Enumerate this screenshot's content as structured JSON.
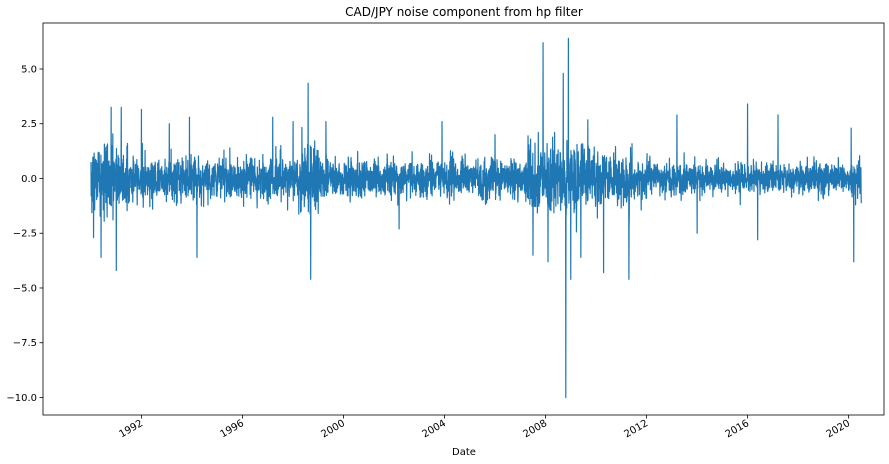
{
  "chart_data": {
    "type": "line",
    "title": "CAD/JPY noise component from hp filter",
    "xlabel": "Date",
    "ylabel": "",
    "x_range": [
      "1990-01",
      "2020-06"
    ],
    "xlim": [
      1988.1,
      2021.4
    ],
    "ylim": [
      -10.8,
      7.1
    ],
    "x_ticks": [
      {
        "value": 1992,
        "label": "1992"
      },
      {
        "value": 1996,
        "label": "1996"
      },
      {
        "value": 2000,
        "label": "2000"
      },
      {
        "value": 2004,
        "label": "2004"
      },
      {
        "value": 2008,
        "label": "2008"
      },
      {
        "value": 2012,
        "label": "2012"
      },
      {
        "value": 2016,
        "label": "2016"
      },
      {
        "value": 2020,
        "label": "2020"
      }
    ],
    "y_ticks": [
      {
        "value": 5.0,
        "label": "5.0"
      },
      {
        "value": 2.5,
        "label": "2.5"
      },
      {
        "value": 0.0,
        "label": "0.0"
      },
      {
        "value": -2.5,
        "label": "−2.5"
      },
      {
        "value": -5.0,
        "label": "−5.0"
      },
      {
        "value": -7.5,
        "label": "−7.5"
      },
      {
        "value": -10.0,
        "label": "−10.0"
      }
    ],
    "grid": false,
    "legend": "none",
    "series_color": "#1f77b4",
    "volatility_bands": [
      {
        "start": 1990.0,
        "end": 1991.5,
        "sigma": 1.3
      },
      {
        "start": 1991.5,
        "end": 1998.3,
        "sigma": 0.8
      },
      {
        "start": 1998.3,
        "end": 1999.0,
        "sigma": 1.3
      },
      {
        "start": 1999.0,
        "end": 2007.3,
        "sigma": 0.7
      },
      {
        "start": 2007.3,
        "end": 2010.0,
        "sigma": 1.3
      },
      {
        "start": 2010.0,
        "end": 2011.5,
        "sigma": 0.95
      },
      {
        "start": 2011.5,
        "end": 2020.5,
        "sigma": 0.6
      }
    ],
    "extremes": [
      {
        "x": 1990.1,
        "y": -2.7
      },
      {
        "x": 1990.4,
        "y": -3.6
      },
      {
        "x": 1990.8,
        "y": 3.25
      },
      {
        "x": 1991.0,
        "y": -4.2
      },
      {
        "x": 1991.2,
        "y": 3.25
      },
      {
        "x": 1992.0,
        "y": 3.15
      },
      {
        "x": 1993.1,
        "y": 2.5
      },
      {
        "x": 1993.9,
        "y": 2.8
      },
      {
        "x": 1994.2,
        "y": -3.6
      },
      {
        "x": 1997.2,
        "y": 2.8
      },
      {
        "x": 1998.0,
        "y": 2.6
      },
      {
        "x": 1998.6,
        "y": 4.35
      },
      {
        "x": 1998.7,
        "y": -4.6
      },
      {
        "x": 1999.3,
        "y": 2.6
      },
      {
        "x": 2002.2,
        "y": -2.3
      },
      {
        "x": 2003.9,
        "y": 2.6
      },
      {
        "x": 2006.0,
        "y": 2.0
      },
      {
        "x": 2007.5,
        "y": -3.5
      },
      {
        "x": 2007.9,
        "y": 6.2
      },
      {
        "x": 2008.1,
        "y": -3.8
      },
      {
        "x": 2008.7,
        "y": 4.8
      },
      {
        "x": 2008.8,
        "y": -10.0
      },
      {
        "x": 2008.9,
        "y": 6.4
      },
      {
        "x": 2009.0,
        "y": -4.6
      },
      {
        "x": 2009.4,
        "y": -3.6
      },
      {
        "x": 2010.3,
        "y": -4.3
      },
      {
        "x": 2011.3,
        "y": -4.6
      },
      {
        "x": 2013.2,
        "y": 2.9
      },
      {
        "x": 2014.0,
        "y": -2.5
      },
      {
        "x": 2016.0,
        "y": 3.4
      },
      {
        "x": 2016.4,
        "y": -2.8
      },
      {
        "x": 2017.2,
        "y": 2.9
      },
      {
        "x": 2020.1,
        "y": 2.3
      },
      {
        "x": 2020.2,
        "y": -3.8
      }
    ]
  }
}
